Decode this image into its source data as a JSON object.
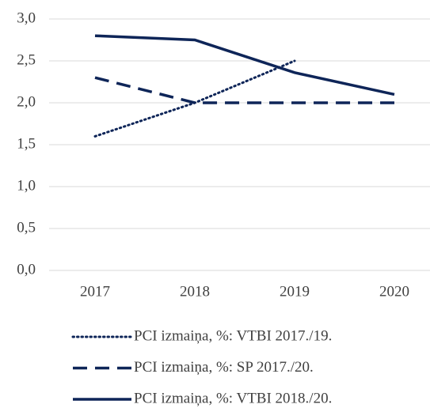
{
  "chart_data": {
    "type": "line",
    "categories": [
      "2017",
      "2018",
      "2019",
      "2020"
    ],
    "series": [
      {
        "name": "PCI izmaiņa, %: VTBI 2017./19.",
        "color": "#0e2558",
        "style": "dotted",
        "values": [
          1.6,
          2.0,
          2.5,
          null
        ]
      },
      {
        "name": "PCI izmaiņa, %: SP 2017./20.",
        "color": "#0e2558",
        "style": "dashed",
        "values": [
          2.3,
          2.0,
          2.0,
          2.0
        ]
      },
      {
        "name": "PCI izmaiņa, %: VTBI 2018./20.",
        "color": "#0e2558",
        "style": "solid",
        "values": [
          2.8,
          2.75,
          2.36,
          2.1
        ]
      }
    ],
    "ylim": [
      0,
      3
    ],
    "yticks": [
      {
        "value": 0,
        "label": "0,0"
      },
      {
        "value": 0.5,
        "label": "0,5"
      },
      {
        "value": 1,
        "label": "1,0"
      },
      {
        "value": 1.5,
        "label": "1,5"
      },
      {
        "value": 2,
        "label": "2,0"
      },
      {
        "value": 2.5,
        "label": "2,5"
      },
      {
        "value": 3,
        "label": "3,0"
      }
    ],
    "grid": true
  }
}
